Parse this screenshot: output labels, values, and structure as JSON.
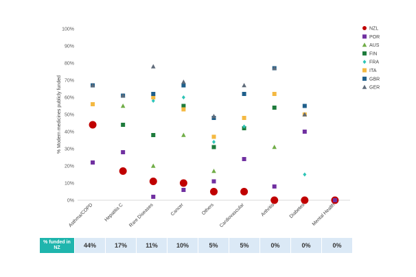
{
  "chart_data": {
    "type": "scatter",
    "ylabel": "% Modern medicines publicly funded",
    "xlabel": "",
    "ylim": [
      0,
      100
    ],
    "yticks": [
      "0%",
      "10%",
      "20%",
      "30%",
      "40%",
      "50%",
      "60%",
      "70%",
      "80%",
      "90%",
      "100%"
    ],
    "grid": false,
    "legend_position": "right",
    "categories": [
      "Asthma/COPD",
      "Hepatitis C",
      "Rare Diseases",
      "Cancer",
      "Others",
      "Cardiovascular",
      "Arthritis",
      "Diabetes",
      "Mental Health"
    ],
    "series": [
      {
        "name": "NZL",
        "color": "#c00000",
        "marker": "circle-large",
        "values": [
          44,
          17,
          11,
          10,
          5,
          5,
          0,
          0,
          0
        ]
      },
      {
        "name": "POR",
        "color": "#7030a0",
        "marker": "square",
        "values": [
          22,
          28,
          2,
          6,
          11,
          24,
          8,
          40,
          0
        ]
      },
      {
        "name": "AUS",
        "color": "#70ad47",
        "marker": "triangle",
        "values": [
          null,
          55,
          20,
          38,
          17,
          null,
          31,
          null,
          null
        ]
      },
      {
        "name": "FIN",
        "color": "#1e7b3c",
        "marker": "square",
        "values": [
          null,
          44,
          38,
          55,
          31,
          42,
          54,
          null,
          null
        ]
      },
      {
        "name": "FRA",
        "color": "#2ec4b6",
        "marker": "diamond",
        "values": [
          null,
          null,
          58,
          60,
          34,
          43,
          null,
          15,
          null
        ]
      },
      {
        "name": "ITA",
        "color": "#f4b942",
        "marker": "square",
        "values": [
          56,
          null,
          60,
          53,
          37,
          48,
          62,
          50,
          null
        ]
      },
      {
        "name": "GBR",
        "color": "#1f5f8b",
        "marker": "square",
        "values": [
          67,
          61,
          62,
          67,
          48,
          62,
          77,
          55,
          null
        ]
      },
      {
        "name": "GER",
        "color": "#5f6b7a",
        "marker": "triangle",
        "values": [
          67,
          61,
          78,
          69,
          49,
          67,
          77,
          50,
          null
        ]
      }
    ]
  },
  "funded_row": {
    "header": "% funded in NZ",
    "values": [
      "44%",
      "17%",
      "11%",
      "10%",
      "5%",
      "5%",
      "0%",
      "0%",
      "0%"
    ]
  }
}
